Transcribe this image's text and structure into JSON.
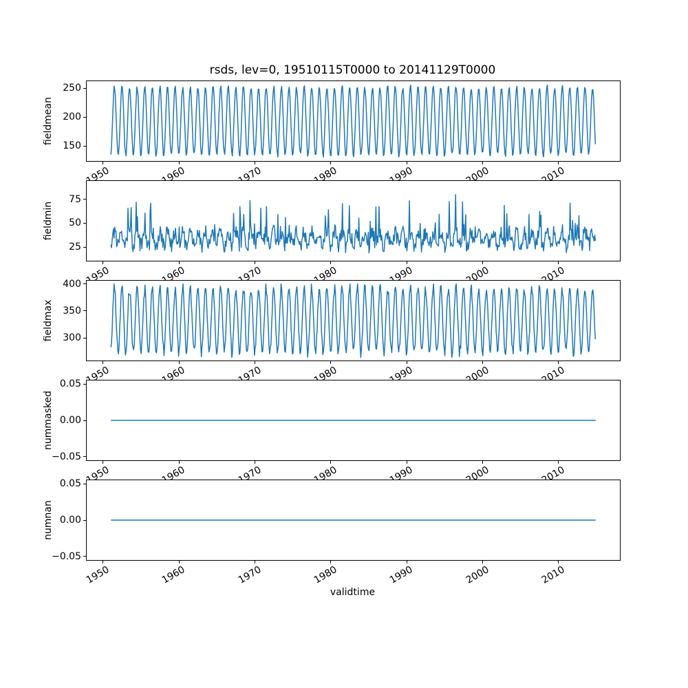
{
  "chart_data": {
    "type": "line",
    "title": "rsds, lev=0, 19510115T0000 to 20141129T0000",
    "xlabel": "validtime",
    "line_color": "#1f77b4",
    "legend": "none",
    "grid": false,
    "x_start": 1951.04,
    "x_end": 2014.91,
    "points_per_year": 12,
    "xlim": [
      1947.85,
      2018.1
    ],
    "x_ticks": [
      {
        "value": 1950,
        "label": "1950"
      },
      {
        "value": 1960,
        "label": "1960"
      },
      {
        "value": 1970,
        "label": "1970"
      },
      {
        "value": 1980,
        "label": "1980"
      },
      {
        "value": 1990,
        "label": "1990"
      },
      {
        "value": 2000,
        "label": "2000"
      },
      {
        "value": 2010,
        "label": "2010"
      }
    ],
    "seed": 20141129,
    "subplots": [
      {
        "name": "fieldmean",
        "ylabel": "fieldmean",
        "ylim": [
          124,
          262
        ],
        "y_ticks": [
          {
            "value": 150,
            "label": "150"
          },
          {
            "value": 200,
            "label": "200"
          },
          {
            "value": 250,
            "label": "250"
          }
        ],
        "series": {
          "kind": "seasonal",
          "base": 193,
          "amplitude": 59,
          "amplitude_jitter": 0.06,
          "noise": 2.5,
          "phase": 0.25,
          "clip_min": 129,
          "clip_max": 256
        },
        "approx_range": [
          130,
          255
        ],
        "description": "Monthly mean rsds: regular annual cycle oscillating between about 130 and 255"
      },
      {
        "name": "fieldmin",
        "ylabel": "fieldmin",
        "ylim": [
          11,
          94
        ],
        "y_ticks": [
          {
            "value": 25,
            "label": "25"
          },
          {
            "value": 50,
            "label": "50"
          },
          {
            "value": 75,
            "label": "75"
          }
        ],
        "series": {
          "kind": "noisy",
          "base": 26,
          "spread": 16,
          "seasonal": 7,
          "spike_prob": 0.1,
          "spike_min": 12,
          "spike_max": 40,
          "clip_min": 15,
          "clip_max": 90
        },
        "approx_range": [
          15,
          90
        ],
        "description": "Monthly minimum rsds: irregular noisy series mostly 20-55 with spikes up to ~90"
      },
      {
        "name": "fieldmax",
        "ylabel": "fieldmax",
        "ylim": [
          258,
          406
        ],
        "y_ticks": [
          {
            "value": 300,
            "label": "300"
          },
          {
            "value": 350,
            "label": "350"
          },
          {
            "value": 400,
            "label": "400"
          }
        ],
        "series": {
          "kind": "seasonal",
          "base": 333,
          "amplitude": 60,
          "amplitude_jitter": 0.12,
          "noise": 6,
          "phase": 0.25,
          "clip_min": 263,
          "clip_max": 400
        },
        "approx_range": [
          265,
          400
        ],
        "description": "Monthly maximum rsds: annual cycle oscillating between about 265 and 400"
      },
      {
        "name": "nummasked",
        "ylabel": "nummasked",
        "ylim": [
          -0.055,
          0.055
        ],
        "y_ticks": [
          {
            "value": -0.05,
            "label": "−0.05"
          },
          {
            "value": 0,
            "label": "0.00"
          },
          {
            "value": 0.05,
            "label": "0.05"
          }
        ],
        "series": {
          "kind": "constant",
          "value": 0
        },
        "approx_range": [
          0,
          0
        ],
        "description": "Number of masked points: constant zero line"
      },
      {
        "name": "numnan",
        "ylabel": "numnan",
        "ylim": [
          -0.055,
          0.055
        ],
        "y_ticks": [
          {
            "value": -0.05,
            "label": "−0.05"
          },
          {
            "value": 0,
            "label": "0.00"
          },
          {
            "value": 0.05,
            "label": "0.05"
          }
        ],
        "series": {
          "kind": "constant",
          "value": 0
        },
        "approx_range": [
          0,
          0
        ],
        "description": "Number of NaN points: constant zero line"
      }
    ]
  }
}
